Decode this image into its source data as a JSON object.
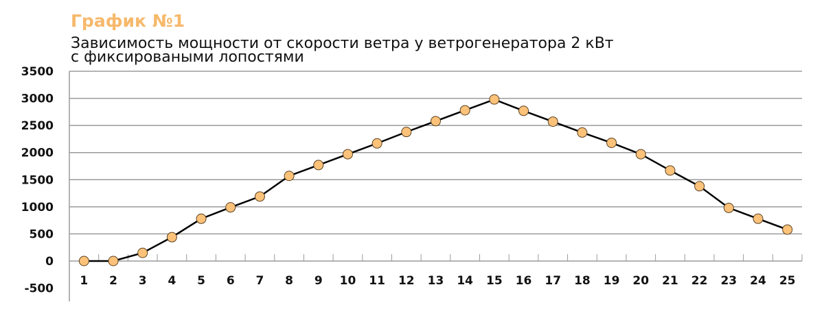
{
  "title": "График №1",
  "subtitle_line1": "Зависимость мощности от скорости ветра у ветрогенератора 2 кВт",
  "subtitle_line2": "с фиксироваными лопостями",
  "chart_data": {
    "type": "line",
    "title": "График №1",
    "subtitle": "Зависимость мощности от скорости ветра у ветрогенератора 2 кВт с фиксироваными лопостями",
    "categories": [
      "1",
      "2",
      "3",
      "4",
      "5",
      "6",
      "7",
      "8",
      "9",
      "10",
      "11",
      "12",
      "13",
      "14",
      "15",
      "16",
      "17",
      "18",
      "19",
      "20",
      "21",
      "22",
      "23",
      "24",
      "25"
    ],
    "values": [
      0,
      0,
      150,
      440,
      780,
      990,
      1190,
      1570,
      1770,
      1970,
      2170,
      2380,
      2580,
      2780,
      2980,
      2770,
      2570,
      2370,
      2180,
      1970,
      1670,
      1380,
      980,
      780,
      580
    ],
    "ylim": [
      -500,
      3500
    ],
    "yticks": [
      "3500",
      "3000",
      "2500",
      "2000",
      "1500",
      "1000",
      "500",
      "0",
      "-500"
    ],
    "grid": true,
    "colors": {
      "marker": "#fcc27a",
      "line": "#000000",
      "title": "#f6b96b",
      "grid": "#9a9a9a"
    }
  }
}
